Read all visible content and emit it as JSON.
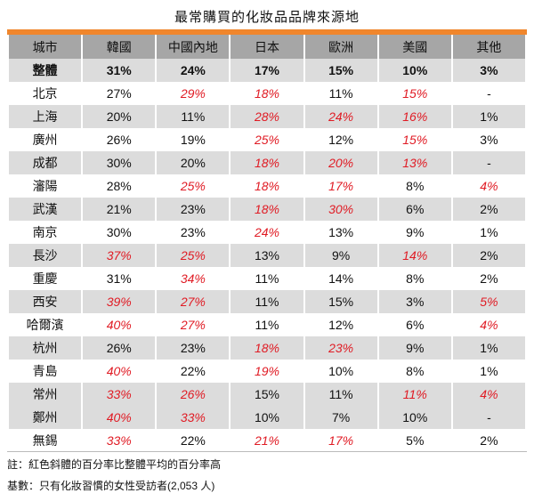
{
  "title": "最常購買的化妝品品牌來源地",
  "headers": [
    "城市",
    "韓國",
    "中國內地",
    "日本",
    "歐洲",
    "美國",
    "其他"
  ],
  "overall": {
    "city": "整體",
    "values": [
      "31%",
      "24%",
      "17%",
      "15%",
      "10%",
      "3%"
    ]
  },
  "rows": [
    {
      "city": "北京",
      "shade": "w",
      "cells": [
        [
          "27%",
          0
        ],
        [
          "29%",
          1
        ],
        [
          "18%",
          1
        ],
        [
          "11%",
          0
        ],
        [
          "15%",
          1
        ],
        [
          "-",
          0
        ]
      ]
    },
    {
      "city": "上海",
      "shade": "g",
      "cells": [
        [
          "20%",
          0
        ],
        [
          "11%",
          0
        ],
        [
          "28%",
          1
        ],
        [
          "24%",
          1
        ],
        [
          "16%",
          1
        ],
        [
          "1%",
          0
        ]
      ]
    },
    {
      "city": "廣州",
      "shade": "w",
      "cells": [
        [
          "26%",
          0
        ],
        [
          "19%",
          0
        ],
        [
          "25%",
          1
        ],
        [
          "12%",
          0
        ],
        [
          "15%",
          1
        ],
        [
          "3%",
          0
        ]
      ]
    },
    {
      "city": "成都",
      "shade": "g",
      "cells": [
        [
          "30%",
          0
        ],
        [
          "20%",
          0
        ],
        [
          "18%",
          1
        ],
        [
          "20%",
          1
        ],
        [
          "13%",
          1
        ],
        [
          "-",
          0
        ]
      ]
    },
    {
      "city": "瀋陽",
      "shade": "w",
      "cells": [
        [
          "28%",
          0
        ],
        [
          "25%",
          1
        ],
        [
          "18%",
          1
        ],
        [
          "17%",
          1
        ],
        [
          "8%",
          0
        ],
        [
          "4%",
          1
        ]
      ]
    },
    {
      "city": "武漢",
      "shade": "g",
      "cells": [
        [
          "21%",
          0
        ],
        [
          "23%",
          0
        ],
        [
          "18%",
          1
        ],
        [
          "30%",
          1
        ],
        [
          "6%",
          0
        ],
        [
          "2%",
          0
        ]
      ]
    },
    {
      "city": "南京",
      "shade": "w",
      "cells": [
        [
          "30%",
          0
        ],
        [
          "23%",
          0
        ],
        [
          "24%",
          1
        ],
        [
          "13%",
          0
        ],
        [
          "9%",
          0
        ],
        [
          "1%",
          0
        ]
      ]
    },
    {
      "city": "長沙",
      "shade": "g",
      "cells": [
        [
          "37%",
          1
        ],
        [
          "25%",
          1
        ],
        [
          "13%",
          0
        ],
        [
          "9%",
          0
        ],
        [
          "14%",
          1
        ],
        [
          "2%",
          0
        ]
      ]
    },
    {
      "city": "重慶",
      "shade": "w",
      "cells": [
        [
          "31%",
          0
        ],
        [
          "34%",
          1
        ],
        [
          "11%",
          0
        ],
        [
          "14%",
          0
        ],
        [
          "8%",
          0
        ],
        [
          "2%",
          0
        ]
      ]
    },
    {
      "city": "西安",
      "shade": "g",
      "cells": [
        [
          "39%",
          1
        ],
        [
          "27%",
          1
        ],
        [
          "11%",
          0
        ],
        [
          "15%",
          0
        ],
        [
          "3%",
          0
        ],
        [
          "5%",
          1
        ]
      ]
    },
    {
      "city": "哈爾濱",
      "shade": "w",
      "cells": [
        [
          "40%",
          1
        ],
        [
          "27%",
          1
        ],
        [
          "11%",
          0
        ],
        [
          "12%",
          0
        ],
        [
          "6%",
          0
        ],
        [
          "4%",
          1
        ]
      ]
    },
    {
      "city": "杭州",
      "shade": "g",
      "cells": [
        [
          "26%",
          0
        ],
        [
          "23%",
          0
        ],
        [
          "18%",
          1
        ],
        [
          "23%",
          1
        ],
        [
          "9%",
          0
        ],
        [
          "1%",
          0
        ]
      ]
    },
    {
      "city": "青島",
      "shade": "w",
      "cells": [
        [
          "40%",
          1
        ],
        [
          "22%",
          0
        ],
        [
          "19%",
          1
        ],
        [
          "10%",
          0
        ],
        [
          "8%",
          0
        ],
        [
          "1%",
          0
        ]
      ]
    },
    {
      "city": "常州",
      "shade": "g",
      "cells": [
        [
          "33%",
          1
        ],
        [
          "26%",
          1
        ],
        [
          "15%",
          0
        ],
        [
          "11%",
          0
        ],
        [
          "11%",
          1
        ],
        [
          "4%",
          1
        ]
      ]
    },
    {
      "city": "鄭州",
      "shade": "g",
      "cells": [
        [
          "40%",
          1
        ],
        [
          "33%",
          1
        ],
        [
          "10%",
          0
        ],
        [
          "7%",
          0
        ],
        [
          "10%",
          0
        ],
        [
          "-",
          0
        ]
      ]
    },
    {
      "city": "無錫",
      "shade": "w",
      "cells": [
        [
          "33%",
          1
        ],
        [
          "22%",
          0
        ],
        [
          "21%",
          1
        ],
        [
          "17%",
          1
        ],
        [
          "5%",
          0
        ],
        [
          "2%",
          0
        ]
      ]
    }
  ],
  "notes": [
    "註：紅色斜體的百分率比整體平均的百分率高",
    "基數：只有化妝習慣的女性受訪者(2,053 人)"
  ],
  "colors": {
    "accent": "#f0862c",
    "highlight": "#e01b24",
    "header": "#a6a6a6",
    "shade": "#dcdcdc"
  }
}
